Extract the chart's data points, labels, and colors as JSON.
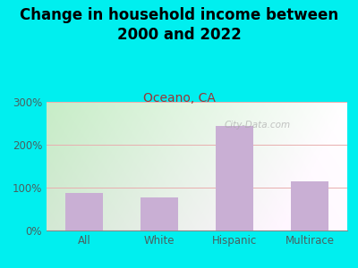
{
  "title": "Change in household income between\n2000 and 2022",
  "subtitle": "Oceano, CA",
  "categories": [
    "All",
    "White",
    "Hispanic",
    "Multirace"
  ],
  "values": [
    88,
    78,
    243,
    115
  ],
  "bar_color": "#c9afd4",
  "background_color": "#00efef",
  "title_fontsize": 12,
  "subtitle_fontsize": 10,
  "subtitle_color": "#9b3535",
  "tick_label_color": "#4a6060",
  "watermark": "City-Data.com",
  "ylim": [
    0,
    300
  ],
  "yticks": [
    0,
    100,
    200,
    300
  ],
  "ytick_labels": [
    "0%",
    "100%",
    "200%",
    "300%"
  ],
  "grid_color": "#e8b0b0",
  "bar_width": 0.5,
  "plot_bg_left": "#c8e8c8",
  "plot_bg_right": "#f8fff8"
}
